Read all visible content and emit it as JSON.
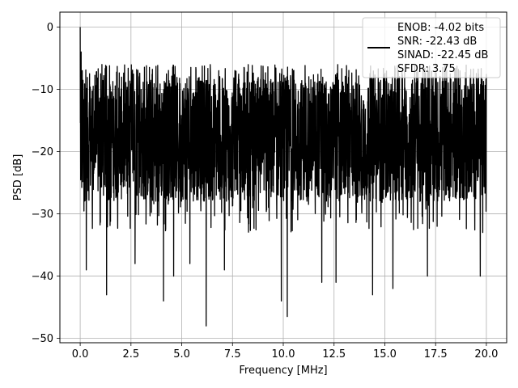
{
  "chart_data": {
    "type": "line",
    "title": "",
    "xlabel": "Frequency [MHz]",
    "ylabel": "PSD [dB]",
    "xlim": [
      -1.0,
      21.0
    ],
    "ylim": [
      -50.7,
      2.4
    ],
    "xticks": [
      0.0,
      2.5,
      5.0,
      7.5,
      10.0,
      12.5,
      15.0,
      17.5,
      20.0
    ],
    "xtick_labels": [
      "0.0",
      "2.5",
      "5.0",
      "7.5",
      "10.0",
      "12.5",
      "15.0",
      "17.5",
      "20.0"
    ],
    "yticks": [
      0,
      -10,
      -20,
      -30,
      -40,
      -50
    ],
    "ytick_labels": [
      "0",
      "−10",
      "−20",
      "−30",
      "−40",
      "−50"
    ],
    "grid": true,
    "legend_placement": "top-right",
    "series": [
      {
        "color": "#000000",
        "x_range": [
          0.0,
          20.0
        ],
        "baseline_db": -19.0,
        "band_db": [
          -28.0,
          -8.0
        ],
        "envelope_top_db": -6.0,
        "envelope_bottom_db": -33.0,
        "peaks": [
          {
            "x": 0.0,
            "y": 0.0
          },
          {
            "x": 0.05,
            "y": -4.0
          },
          {
            "x": 0.1,
            "y": -7.0
          },
          {
            "x": 0.2,
            "y": -28.0
          }
        ],
        "dips": [
          {
            "x": 0.3,
            "y": -39.0
          },
          {
            "x": 1.3,
            "y": -43.0
          },
          {
            "x": 2.7,
            "y": -38.0
          },
          {
            "x": 4.1,
            "y": -44.0
          },
          {
            "x": 4.6,
            "y": -40.0
          },
          {
            "x": 5.4,
            "y": -38.0
          },
          {
            "x": 6.2,
            "y": -48.0
          },
          {
            "x": 7.1,
            "y": -39.0
          },
          {
            "x": 9.9,
            "y": -44.0
          },
          {
            "x": 10.2,
            "y": -46.5
          },
          {
            "x": 11.9,
            "y": -41.0
          },
          {
            "x": 12.6,
            "y": -41.0
          },
          {
            "x": 14.4,
            "y": -43.0
          },
          {
            "x": 15.4,
            "y": -42.0
          },
          {
            "x": 17.1,
            "y": -40.0
          },
          {
            "x": 19.7,
            "y": -40.0
          }
        ]
      }
    ],
    "legend": {
      "lines": [
        "ENOB: -4.02 bits",
        "SNR: -22.43 dB",
        "SINAD: -22.45 dB",
        "SFDR: 3.75"
      ]
    }
  }
}
